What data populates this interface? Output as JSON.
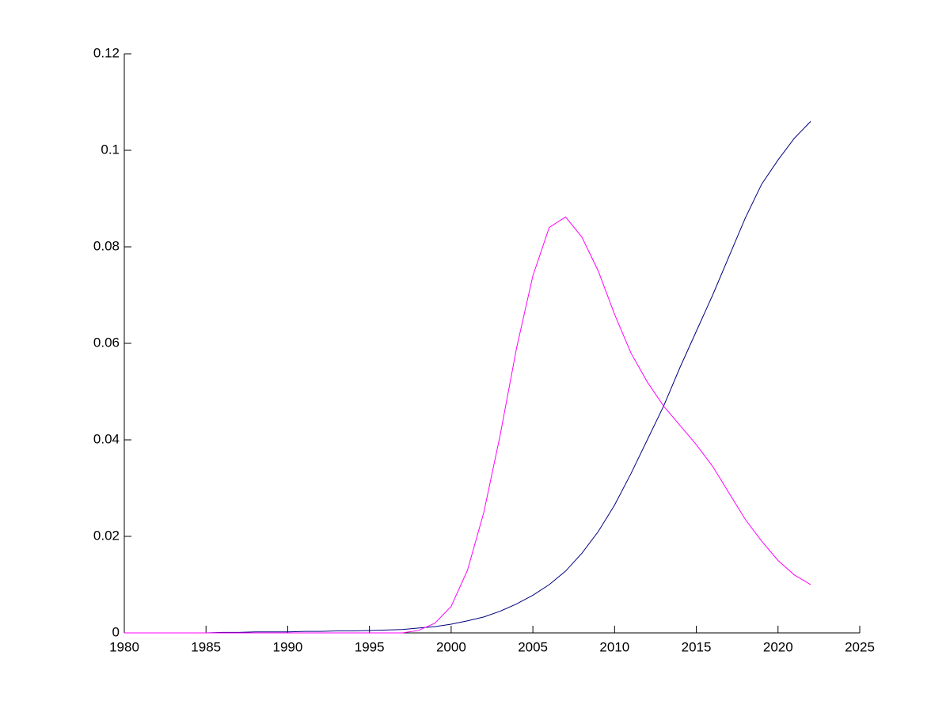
{
  "chart_data": {
    "type": "line",
    "x": [
      1980,
      1981,
      1982,
      1983,
      1984,
      1985,
      1986,
      1987,
      1988,
      1989,
      1990,
      1991,
      1992,
      1993,
      1994,
      1995,
      1996,
      1997,
      1998,
      1999,
      2000,
      2001,
      2002,
      2003,
      2004,
      2005,
      2006,
      2007,
      2008,
      2009,
      2010,
      2011,
      2012,
      2013,
      2014,
      2015,
      2016,
      2017,
      2018,
      2019,
      2020,
      2021,
      2022
    ],
    "series": [
      {
        "color": "#000080",
        "values": [
          0,
          0,
          0,
          0,
          0,
          0,
          0.0001,
          0.0001,
          0.0002,
          0.0002,
          0.0002,
          0.0003,
          0.0003,
          0.0004,
          0.0004,
          0.0005,
          0.0006,
          0.0007,
          0.001,
          0.0013,
          0.0018,
          0.0025,
          0.0033,
          0.0045,
          0.006,
          0.0078,
          0.01,
          0.0128,
          0.0165,
          0.021,
          0.0265,
          0.033,
          0.04,
          0.047,
          0.055,
          0.0625,
          0.07,
          0.078,
          0.086,
          0.093,
          0.098,
          0.1025,
          0.106
        ]
      },
      {
        "color": "#ff00ff",
        "values": [
          0,
          0,
          0,
          0,
          0,
          0,
          0,
          0,
          0,
          0,
          0,
          0,
          0,
          0,
          0,
          0,
          0,
          0,
          0.0005,
          0.002,
          0.0055,
          0.013,
          0.025,
          0.041,
          0.059,
          0.074,
          0.084,
          0.0862,
          0.082,
          0.075,
          0.066,
          0.058,
          0.052,
          0.047,
          0.043,
          0.039,
          0.0345,
          0.029,
          0.0235,
          0.019,
          0.015,
          0.012,
          0.01
        ]
      }
    ],
    "xlim": [
      1980,
      2025
    ],
    "xticks": [
      1980,
      1985,
      1990,
      1995,
      2000,
      2005,
      2010,
      2015,
      2020,
      2025
    ],
    "ylim": [
      0,
      0.12
    ],
    "yticks": [
      0,
      0.02,
      0.04,
      0.06,
      0.08,
      0.1,
      0.12
    ]
  }
}
